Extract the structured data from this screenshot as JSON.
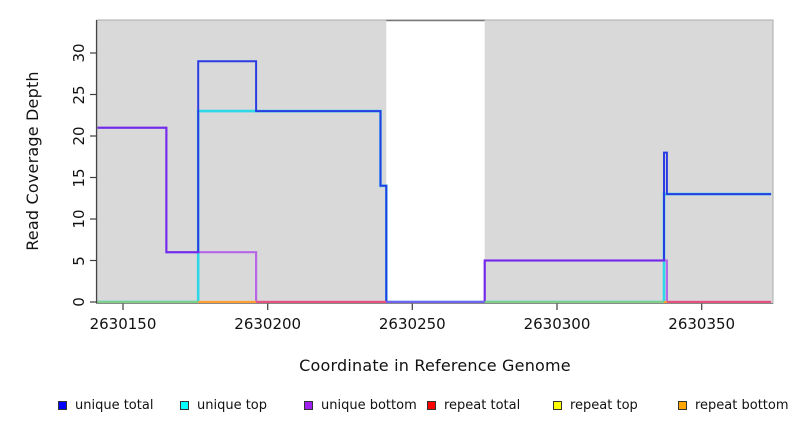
{
  "figure": {
    "x_label": "Coordinate in Reference Genome",
    "y_label": "Read Coverage Depth"
  },
  "axes": {
    "x": {
      "ticks": [
        {
          "value": 2630150,
          "label": "2630150"
        },
        {
          "value": 2630200,
          "label": "2630200"
        },
        {
          "value": 2630250,
          "label": "2630250"
        },
        {
          "value": 2630300,
          "label": "2630300"
        },
        {
          "value": 2630350,
          "label": "2630350"
        }
      ]
    },
    "y": {
      "ticks": [
        0,
        5,
        10,
        15,
        20,
        25,
        30
      ]
    }
  },
  "chart_data": {
    "type": "line",
    "style": "step",
    "xlabel": "Coordinate in Reference Genome",
    "ylabel": "Read Coverage Depth",
    "xlim": [
      2630141,
      2630374
    ],
    "ylim": [
      0,
      34
    ],
    "grid": false,
    "plot_background": "#d9d9d9",
    "no_data_region": {
      "from": 2630241,
      "to": 2630275,
      "color": "#ffffff"
    },
    "series": [
      {
        "name": "unique total",
        "color": "#2a3ce4",
        "width": 2,
        "opacity": 1,
        "z": 2,
        "steps": [
          [
            2630141,
            21
          ],
          [
            2630165,
            6
          ],
          [
            2630176,
            29
          ],
          [
            2630196,
            23
          ],
          [
            2630239,
            14
          ],
          [
            2630241,
            0
          ],
          [
            2630275,
            5
          ],
          [
            2630337,
            18
          ],
          [
            2630338,
            13
          ]
        ],
        "end": 2630374
      },
      {
        "name": "unique top",
        "color": "#2fd8e8",
        "width": 2.6,
        "opacity": 1,
        "z": 1,
        "steps": [
          [
            2630141,
            0
          ],
          [
            2630176,
            23
          ],
          [
            2630239,
            14
          ],
          [
            2630241,
            0
          ],
          [
            2630337,
            13
          ]
        ],
        "end": 2630374
      },
      {
        "name": "unique bottom",
        "color": "#a020f0",
        "width": 2.2,
        "opacity": 0.62,
        "z": 3,
        "steps": [
          [
            2630141,
            21
          ],
          [
            2630165,
            6
          ],
          [
            2630196,
            0
          ],
          [
            2630275,
            5
          ],
          [
            2630338,
            0
          ]
        ],
        "end": 2630374
      },
      {
        "name": "repeat total",
        "color": "#ff0000",
        "width": 2,
        "opacity": 1,
        "z": 0,
        "steps": [
          [
            2630141,
            0
          ]
        ],
        "end": 2630374
      },
      {
        "name": "repeat top",
        "color": "#ffff00",
        "width": 2,
        "opacity": 1,
        "z": 0,
        "steps": [
          [
            2630141,
            0
          ]
        ],
        "end": 2630374
      },
      {
        "name": "repeat bottom",
        "color": "#ffa500",
        "width": 2,
        "opacity": 1,
        "z": 0,
        "steps": [
          [
            2630141,
            0
          ]
        ],
        "end": 2630374
      }
    ],
    "baseline_segments": [
      {
        "from": 2630141,
        "to": 2630176,
        "color": "#7ecf8a"
      },
      {
        "from": 2630176,
        "to": 2630196,
        "color": "#ff9f33"
      },
      {
        "from": 2630196,
        "to": 2630241,
        "color": "#e4527d"
      },
      {
        "from": 2630241,
        "to": 2630275,
        "color": "#7263ee"
      },
      {
        "from": 2630275,
        "to": 2630337,
        "color": "#7ecf8a"
      },
      {
        "from": 2630337,
        "to": 2630338,
        "color": "#ff9f33"
      },
      {
        "from": 2630338,
        "to": 2630374,
        "color": "#e4527d"
      }
    ]
  },
  "legend": {
    "items": [
      {
        "label": "unique total",
        "color": "#0000ff"
      },
      {
        "label": "unique top",
        "color": "#00ffff"
      },
      {
        "label": "unique bottom",
        "color": "#a020f0"
      },
      {
        "label": "repeat total",
        "color": "#ff0000"
      },
      {
        "label": "repeat top",
        "color": "#ffff00"
      },
      {
        "label": "repeat bottom",
        "color": "#ffa500"
      }
    ]
  }
}
